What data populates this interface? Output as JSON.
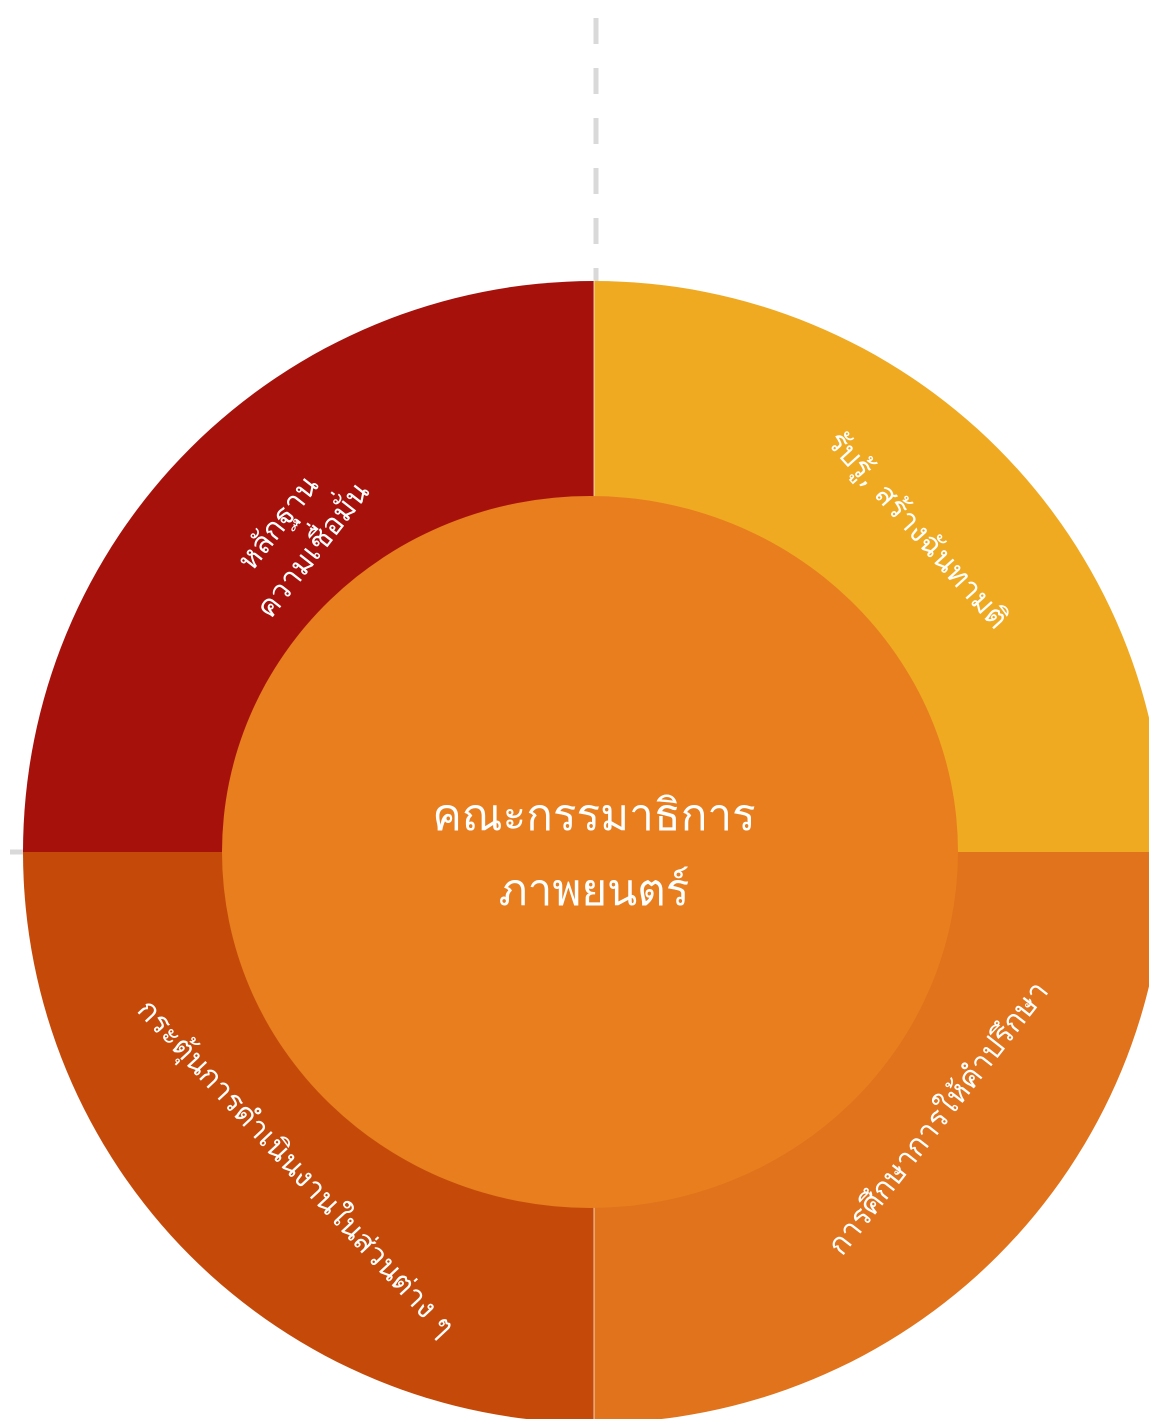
{
  "center": {
    "line1": "คณะกรรมาธิการ",
    "line2": "ภาพยนตร์",
    "color": "#E87E1E"
  },
  "segments": [
    {
      "id": "top-left",
      "lines": [
        "หลักฐาน",
        "ความเชื่อมั่น"
      ],
      "color": "#A7110C"
    },
    {
      "id": "top-right",
      "lines": [
        "รับรู้, สร้างฉันทามติ"
      ],
      "color": "#EFAA22"
    },
    {
      "id": "bottom-right",
      "lines": [
        "การศึกษาการให้คำปรึกษา"
      ],
      "color": "#E0731B"
    },
    {
      "id": "bottom-left",
      "lines": [
        "กระตุ้นการดำเนินงานในส่วนต่าง ๆ"
      ],
      "color": "#C54A0A"
    }
  ],
  "guides": {
    "color": "#D9D9D9"
  }
}
